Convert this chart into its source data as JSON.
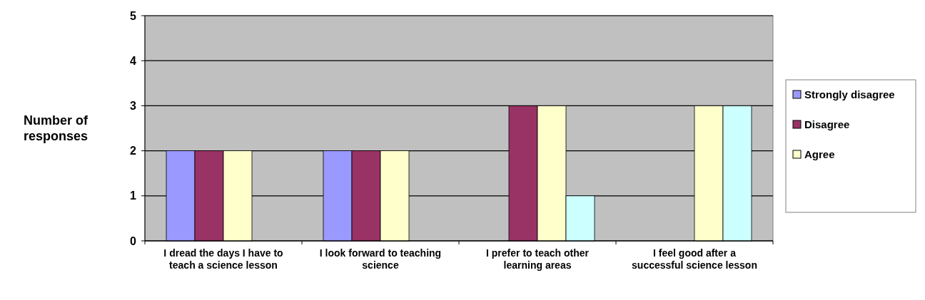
{
  "chart_data": {
    "type": "bar",
    "ylabel": "Number of responses",
    "categories": [
      "I dread the days I have to teach a science lesson",
      "I look forward to teaching science",
      "I prefer to teach other learning areas",
      "I feel good after a successful science lesson"
    ],
    "series": [
      {
        "name": "Strongly disagree",
        "color": "#9999ff",
        "values": [
          2,
          2,
          0,
          0
        ]
      },
      {
        "name": "Disagree",
        "color": "#993366",
        "values": [
          2,
          2,
          3,
          0
        ]
      },
      {
        "name": "Agree",
        "color": "#ffffcc",
        "values": [
          2,
          2,
          3,
          3
        ]
      },
      {
        "color": "#ccffff",
        "values": [
          0,
          0,
          1,
          3
        ]
      }
    ],
    "ylim": [
      0,
      5
    ],
    "yticks": [
      0,
      1,
      2,
      3,
      4,
      5
    ],
    "grid": "y",
    "legend": "right"
  }
}
